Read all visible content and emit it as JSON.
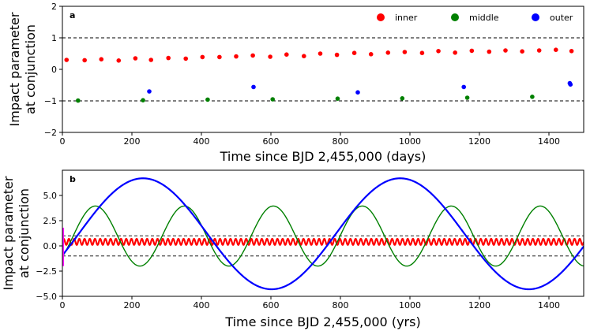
{
  "chart_data": [
    {
      "type": "scatter",
      "panel_label": "a",
      "xlabel": "Time since BJD 2,455,000 (days)",
      "ylabel_line1": "Impact parameter",
      "ylabel_line2": "at conjunction",
      "xlim": [
        0,
        1500
      ],
      "ylim": [
        -2,
        2
      ],
      "xticks": [
        0,
        200,
        400,
        600,
        800,
        1000,
        1200,
        1400
      ],
      "xtick_labels": [
        "0",
        "200",
        "400",
        "600",
        "800",
        "1000",
        "1200",
        "1400"
      ],
      "yticks": [
        -2,
        -1,
        0,
        1,
        2
      ],
      "ytick_labels": [
        "−2",
        "−1",
        "0",
        "1",
        "2"
      ],
      "reference_lines": [
        1,
        -1
      ],
      "legend_position": "top-right",
      "series": [
        {
          "name": "inner",
          "color": "#ff0000",
          "x": [
            12,
            64,
            112,
            162,
            210,
            255,
            305,
            355,
            403,
            452,
            500,
            548,
            598,
            645,
            695,
            742,
            790,
            840,
            888,
            937,
            985,
            1035,
            1082,
            1130,
            1178,
            1228,
            1275,
            1323,
            1372,
            1420,
            1465
          ],
          "y": [
            0.3,
            0.29,
            0.32,
            0.28,
            0.35,
            0.3,
            0.36,
            0.34,
            0.39,
            0.39,
            0.41,
            0.44,
            0.4,
            0.47,
            0.42,
            0.5,
            0.46,
            0.52,
            0.48,
            0.53,
            0.55,
            0.52,
            0.58,
            0.53,
            0.59,
            0.56,
            0.6,
            0.57,
            0.6,
            0.62,
            0.58
          ]
        },
        {
          "name": "middle",
          "color": "#008000",
          "x": [
            45,
            232,
            418,
            605,
            792,
            978,
            1165,
            1352
          ],
          "y": [
            -0.99,
            -0.98,
            -0.96,
            -0.95,
            -0.93,
            -0.92,
            -0.9,
            -0.87
          ]
        },
        {
          "name": "outer",
          "color": "#0000ff",
          "x": [
            250,
            550,
            850,
            1155,
            1460,
            1462
          ],
          "y": [
            -0.7,
            -0.56,
            -0.73,
            -0.56,
            -0.44,
            -0.48
          ]
        }
      ]
    },
    {
      "type": "line",
      "panel_label": "b",
      "xlabel": "Time since BJD 2,455,000 (yrs)",
      "ylabel_line1": "Impact parameter",
      "ylabel_line2": "at conjunction",
      "xlim": [
        0,
        1500
      ],
      "ylim": [
        -5,
        7.5
      ],
      "xticks": [
        0,
        200,
        400,
        600,
        800,
        1000,
        1200,
        1400
      ],
      "xtick_labels": [
        "0",
        "200",
        "400",
        "600",
        "800",
        "1000",
        "1200",
        "1400"
      ],
      "yticks": [
        -5,
        -2.5,
        0,
        2.5,
        5
      ],
      "ytick_labels": [
        "−5.0",
        "−2.5",
        "0.0",
        "2.5",
        "5.0"
      ],
      "reference_lines": [
        1,
        -1
      ],
      "series": [
        {
          "name": "inner",
          "color": "#ff0000",
          "model": "fast oscillation",
          "x": [
            0,
            1500
          ],
          "mean": 0.4,
          "amplitude": 0.3,
          "period": 15
        },
        {
          "name": "middle",
          "color": "#008000",
          "model": "sinusoid",
          "mean": 1.0,
          "amplitude": 3.0,
          "period": 256,
          "peak_x": [
            95,
            351,
            607,
            863,
            1119,
            1375
          ],
          "peak_y": 3.95,
          "trough_y": -2.0
        },
        {
          "name": "outer",
          "color": "#0000ff",
          "model": "sinusoid",
          "mean": 1.2,
          "amplitude": 5.5,
          "period": 740,
          "peak_x": [
            232,
            972
          ],
          "peak_y": 6.7,
          "trough_x": [
            602,
            1342
          ],
          "trough_y": -4.3
        },
        {
          "name": "initial transient",
          "color": "#ff00ff",
          "x": [
            2,
            2
          ],
          "y": [
            -2.0,
            1.8
          ]
        }
      ]
    }
  ]
}
